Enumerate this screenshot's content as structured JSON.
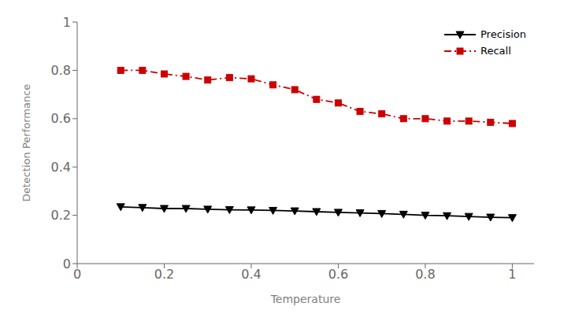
{
  "chart_data": {
    "type": "line",
    "xlabel": "Temperature",
    "ylabel": "Detection Performance",
    "x": [
      0.1,
      0.15,
      0.2,
      0.25,
      0.3,
      0.35,
      0.4,
      0.45,
      0.5,
      0.55,
      0.6,
      0.65,
      0.7,
      0.75,
      0.8,
      0.85,
      0.9,
      0.95,
      1.0
    ],
    "series": [
      {
        "name": "Precision",
        "color": "#000000",
        "marker": "triangle_down",
        "line_style": "solid",
        "values": [
          0.235,
          0.232,
          0.228,
          0.228,
          0.225,
          0.223,
          0.222,
          0.22,
          0.218,
          0.215,
          0.212,
          0.21,
          0.207,
          0.204,
          0.2,
          0.198,
          0.195,
          0.192,
          0.19
        ]
      },
      {
        "name": "Recall",
        "color": "#cc0000",
        "marker": "square",
        "line_style": "dashdot",
        "values": [
          0.8,
          0.8,
          0.785,
          0.775,
          0.76,
          0.77,
          0.765,
          0.74,
          0.72,
          0.68,
          0.665,
          0.63,
          0.62,
          0.6,
          0.6,
          0.59,
          0.59,
          0.585,
          0.58
        ]
      }
    ],
    "xlim": [
      0,
      1.05
    ],
    "ylim": [
      0,
      1.0
    ],
    "xticks": [
      0,
      0.2,
      0.4,
      0.6,
      0.8,
      1.0
    ],
    "yticks": [
      0,
      0.2,
      0.4,
      0.6,
      0.8,
      1.0
    ],
    "grid": false,
    "legend": "upper right"
  }
}
